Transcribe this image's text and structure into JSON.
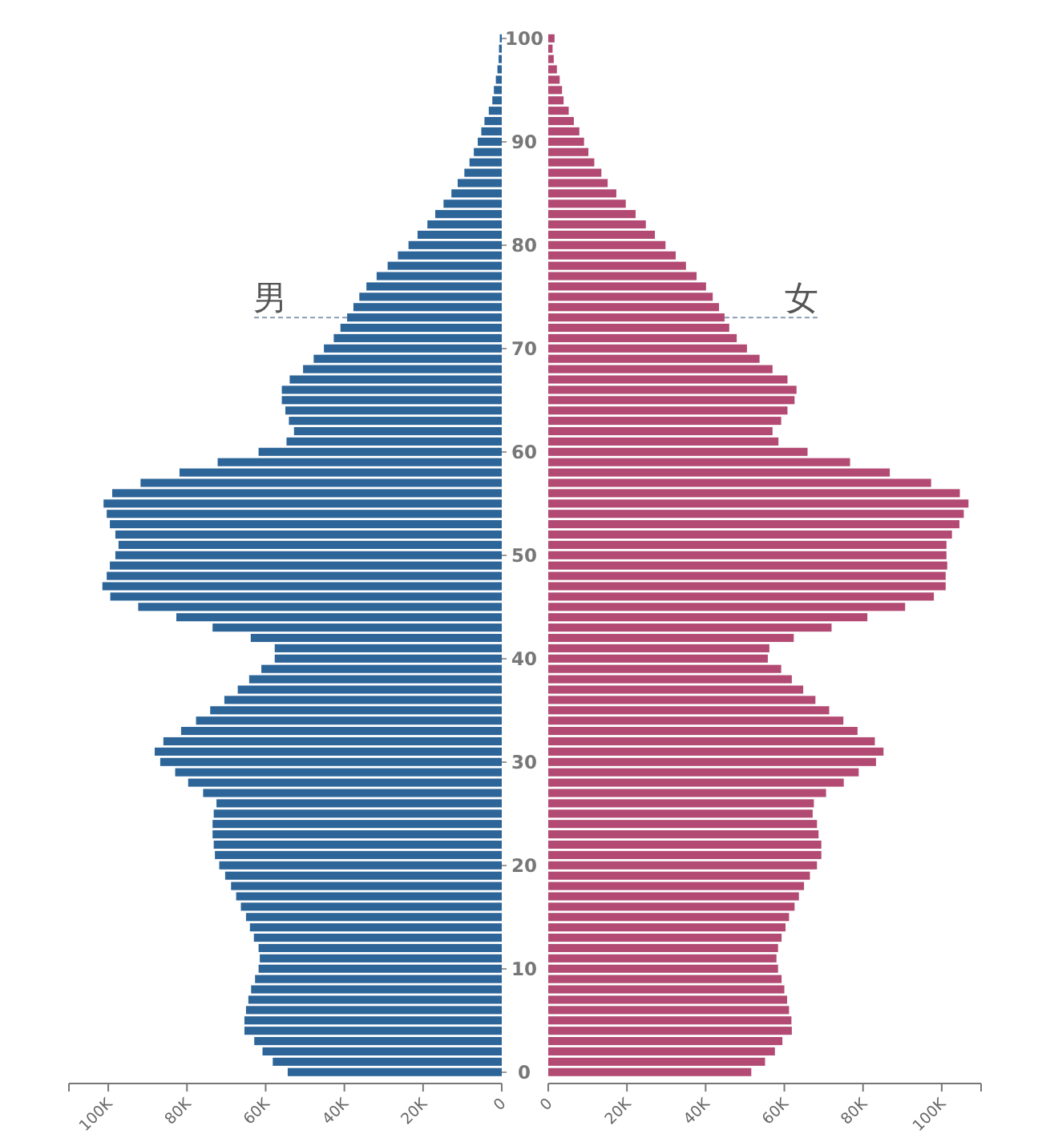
{
  "chart_data": [
    {
      "type": "bar",
      "orientation": "horizontal",
      "tick_labels": "x",
      "categories": [
        "100",
        null,
        null,
        null,
        null,
        null,
        null,
        null,
        null,
        null,
        "90",
        null,
        null,
        null,
        null,
        null,
        null,
        null,
        null,
        null,
        "80",
        null,
        null,
        null,
        null,
        null,
        null,
        null,
        null,
        null,
        "70",
        null,
        null,
        null,
        null,
        null,
        null,
        null,
        null,
        null,
        "60",
        null,
        null,
        null,
        null,
        null,
        null,
        null,
        null,
        null,
        "50",
        null,
        null,
        null,
        null,
        null,
        null,
        null,
        null,
        null,
        "40",
        null,
        null,
        null,
        null,
        null,
        null,
        null,
        null,
        null,
        "30",
        null,
        null,
        null,
        null,
        null,
        null,
        null,
        null,
        null,
        "20",
        null,
        null,
        null,
        null,
        null,
        null,
        null,
        null,
        null,
        "10",
        null,
        null,
        null,
        null,
        null,
        null,
        null,
        null,
        null,
        "0"
      ],
      "xlim": [
        110,
        0
      ],
      "xticks": [
        {
          "value": 100,
          "label": "100K"
        },
        {
          "value": 80,
          "label": "80K"
        },
        {
          "value": 60,
          "label": "60K"
        },
        {
          "value": 40,
          "label": "40K"
        },
        {
          "value": 20,
          "label": "20K"
        },
        0
      ],
      "series": [
        {
          "name": "男",
          "color": "#2d6599",
          "values": [
            0.5,
            0.7,
            0.8,
            1.1,
            1.5,
            2.0,
            2.4,
            3.3,
            4.4,
            5.2,
            6.1,
            7.1,
            8.2,
            9.5,
            11.2,
            12.8,
            14.8,
            16.9,
            18.9,
            21.4,
            23.7,
            26.4,
            29.0,
            31.8,
            34.4,
            36.2,
            37.7,
            39.3,
            41.0,
            42.7,
            45.2,
            47.8,
            50.5,
            53.9,
            55.9,
            55.9,
            55.0,
            54.1,
            52.8,
            54.7,
            61.8,
            72.2,
            81.9,
            91.8,
            99.0,
            101.2,
            100.4,
            99.6,
            98.2,
            97.4,
            98.2,
            99.6,
            100.4,
            101.5,
            99.5,
            92.4,
            82.7,
            73.5,
            63.8,
            57.7,
            57.7,
            61.1,
            64.2,
            67.1,
            70.5,
            74.1,
            77.7,
            81.5,
            86.0,
            88.2,
            86.8,
            83.0,
            79.7,
            75.9,
            72.5,
            73.2,
            73.5,
            73.5,
            73.2,
            72.9,
            71.8,
            70.3,
            68.8,
            67.5,
            66.3,
            65.0,
            64.0,
            63.0,
            61.8,
            61.5,
            61.8,
            62.7,
            63.7,
            64.4,
            65.0,
            65.4,
            65.4,
            62.9,
            60.8,
            58.2,
            54.4
          ]
        }
      ]
    },
    {
      "type": "bar",
      "orientation": "horizontal",
      "categories": [
        "100",
        null,
        null,
        null,
        null,
        null,
        null,
        null,
        null,
        null,
        "90",
        null,
        null,
        null,
        null,
        null,
        null,
        null,
        null,
        null,
        "80",
        null,
        null,
        null,
        null,
        null,
        null,
        null,
        null,
        null,
        "70",
        null,
        null,
        null,
        null,
        null,
        null,
        null,
        null,
        null,
        "60",
        null,
        null,
        null,
        null,
        null,
        null,
        null,
        null,
        null,
        "50",
        null,
        null,
        null,
        null,
        null,
        null,
        null,
        null,
        null,
        "40",
        null,
        null,
        null,
        null,
        null,
        null,
        null,
        null,
        null,
        "30",
        null,
        null,
        null,
        null,
        null,
        null,
        null,
        null,
        null,
        "20",
        null,
        null,
        null,
        null,
        null,
        null,
        null,
        null,
        null,
        "10",
        null,
        null,
        null,
        null,
        null,
        null,
        null,
        null,
        null,
        "0"
      ],
      "xlim": [
        0,
        110
      ],
      "xticks": [
        0,
        {
          "value": 20,
          "label": "20K"
        },
        {
          "value": 40,
          "label": "40K"
        },
        {
          "value": 60,
          "label": "60K"
        },
        {
          "value": 80,
          "label": "80K"
        },
        {
          "value": 100,
          "label": "100K"
        }
      ],
      "series": [
        {
          "name": "女",
          "color": "#b34a73",
          "values": [
            1.6,
            1.1,
            1.4,
            2.2,
            2.9,
            3.5,
            3.9,
            5.2,
            6.5,
            7.9,
            9.1,
            10.2,
            11.7,
            13.5,
            15.1,
            17.3,
            19.7,
            22.2,
            24.8,
            27.1,
            29.8,
            32.4,
            35.0,
            37.7,
            40.1,
            41.8,
            43.4,
            44.8,
            46.0,
            47.9,
            50.5,
            53.7,
            57.0,
            60.8,
            63.1,
            62.6,
            60.8,
            59.2,
            57.0,
            58.5,
            65.9,
            76.7,
            86.8,
            97.3,
            104.6,
            106.8,
            105.6,
            104.5,
            102.6,
            101.2,
            101.2,
            101.4,
            101.0,
            101.0,
            98.0,
            90.7,
            81.1,
            72.0,
            62.4,
            56.2,
            55.8,
            59.2,
            61.9,
            64.8,
            67.9,
            71.4,
            75.0,
            78.6,
            83.0,
            85.2,
            83.3,
            78.9,
            75.1,
            70.6,
            67.5,
            67.2,
            68.3,
            68.7,
            69.4,
            69.4,
            68.3,
            66.5,
            65.0,
            63.7,
            62.6,
            61.2,
            60.3,
            59.3,
            58.4,
            58.0,
            58.4,
            59.3,
            60.0,
            60.7,
            61.2,
            61.8,
            61.9,
            59.5,
            57.6,
            55.1,
            51.6
          ]
        }
      ]
    }
  ]
}
